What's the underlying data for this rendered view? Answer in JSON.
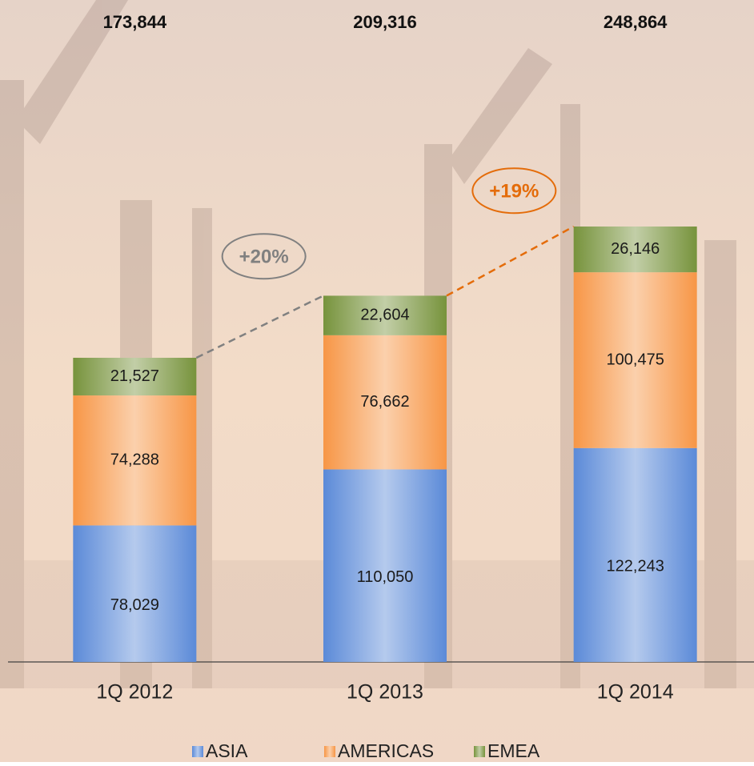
{
  "chart_data": {
    "type": "stacked-bar",
    "categories": [
      "1Q 2012",
      "1Q 2013",
      "1Q 2014"
    ],
    "series": [
      {
        "name": "ASIA",
        "color": "#5b8ad8",
        "values": [
          78029,
          110050,
          122243
        ],
        "value_labels": [
          "78,029",
          "110,050",
          "122,243"
        ]
      },
      {
        "name": "AMERICAS",
        "color": "#f79646",
        "values": [
          74288,
          76662,
          100475
        ],
        "value_labels": [
          "74,288",
          "76,662",
          "100,475"
        ]
      },
      {
        "name": "EMEA",
        "color": "#77933c",
        "values": [
          21527,
          22604,
          26146
        ],
        "value_labels": [
          "21,527",
          "22,604",
          "26,146"
        ]
      }
    ],
    "totals": {
      "values": [
        173844,
        209316,
        248864
      ],
      "value_labels": [
        "173,844",
        "209,316",
        "248,864"
      ]
    },
    "annotations": [
      {
        "text": "+20%",
        "color": "#808080"
      },
      {
        "text": "+19%",
        "color": "#e46c0a"
      }
    ]
  }
}
